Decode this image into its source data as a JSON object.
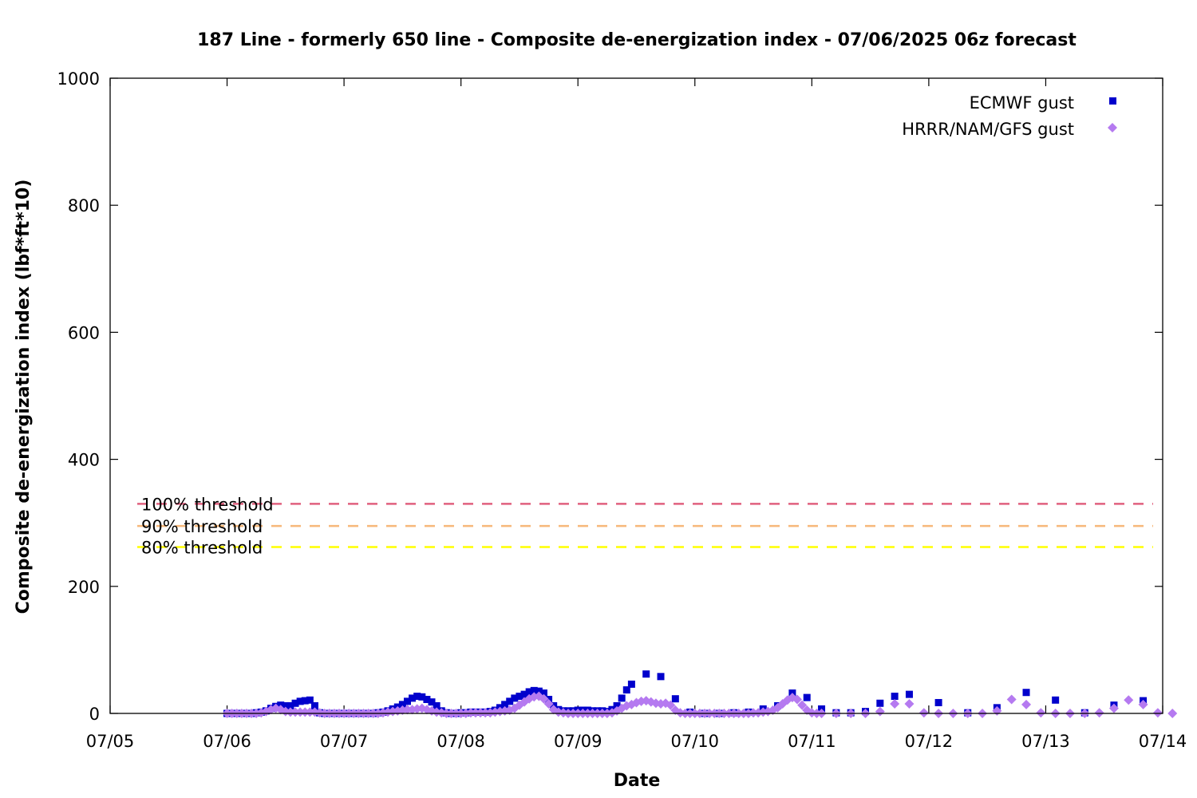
{
  "chart_data": {
    "type": "scatter",
    "title": "187 Line - formerly 650 line - Composite de-energization index - 07/06/2025 06z forecast",
    "xlabel": "Date",
    "ylabel": "Composite de-energization index (lbf*ft*10)",
    "ylim": [
      0,
      1000
    ],
    "xlim": [
      "2025-07-05 00:00",
      "2025-07-14 00:00"
    ],
    "x_tick_labels": [
      "07/05",
      "07/06",
      "07/07",
      "07/08",
      "07/09",
      "07/10",
      "07/11",
      "07/12",
      "07/13",
      "07/14"
    ],
    "y_tick_labels": [
      "0",
      "200",
      "400",
      "600",
      "800",
      "1000"
    ],
    "legend_position": "top-right",
    "thresholds": [
      {
        "label": "100% threshold",
        "value": 330,
        "color": "#e0607e"
      },
      {
        "label": "90% threshold",
        "value": 295,
        "color": "#f7b87a"
      },
      {
        "label": "80% threshold",
        "value": 262,
        "color": "#ffff00"
      }
    ],
    "series": [
      {
        "name": "ECMWF gust",
        "color": "#0000cc",
        "marker": "square",
        "points": [
          [
            "2025-07-06 00:00",
            0
          ],
          [
            "2025-07-06 01:00",
            0
          ],
          [
            "2025-07-06 02:00",
            0
          ],
          [
            "2025-07-06 03:00",
            0
          ],
          [
            "2025-07-06 04:00",
            0
          ],
          [
            "2025-07-06 05:00",
            0
          ],
          [
            "2025-07-06 06:00",
            1
          ],
          [
            "2025-07-06 07:00",
            2
          ],
          [
            "2025-07-06 08:00",
            4
          ],
          [
            "2025-07-06 09:00",
            8
          ],
          [
            "2025-07-06 10:00",
            11
          ],
          [
            "2025-07-06 11:00",
            13
          ],
          [
            "2025-07-06 12:00",
            12
          ],
          [
            "2025-07-06 13:00",
            12
          ],
          [
            "2025-07-06 14:00",
            16
          ],
          [
            "2025-07-06 15:00",
            19
          ],
          [
            "2025-07-06 16:00",
            20
          ],
          [
            "2025-07-06 17:00",
            21
          ],
          [
            "2025-07-06 18:00",
            12
          ],
          [
            "2025-07-06 19:00",
            1
          ],
          [
            "2025-07-06 20:00",
            0
          ],
          [
            "2025-07-06 21:00",
            0
          ],
          [
            "2025-07-06 22:00",
            0
          ],
          [
            "2025-07-06 23:00",
            0
          ],
          [
            "2025-07-07 00:00",
            0
          ],
          [
            "2025-07-07 01:00",
            0
          ],
          [
            "2025-07-07 02:00",
            0
          ],
          [
            "2025-07-07 03:00",
            0
          ],
          [
            "2025-07-07 04:00",
            0
          ],
          [
            "2025-07-07 05:00",
            0
          ],
          [
            "2025-07-07 06:00",
            0
          ],
          [
            "2025-07-07 07:00",
            1
          ],
          [
            "2025-07-07 08:00",
            2
          ],
          [
            "2025-07-07 09:00",
            4
          ],
          [
            "2025-07-07 10:00",
            7
          ],
          [
            "2025-07-07 11:00",
            10
          ],
          [
            "2025-07-07 12:00",
            14
          ],
          [
            "2025-07-07 13:00",
            19
          ],
          [
            "2025-07-07 14:00",
            24
          ],
          [
            "2025-07-07 15:00",
            27
          ],
          [
            "2025-07-07 16:00",
            26
          ],
          [
            "2025-07-07 17:00",
            22
          ],
          [
            "2025-07-07 18:00",
            18
          ],
          [
            "2025-07-07 19:00",
            12
          ],
          [
            "2025-07-07 20:00",
            4
          ],
          [
            "2025-07-07 21:00",
            1
          ],
          [
            "2025-07-07 22:00",
            0
          ],
          [
            "2025-07-07 23:00",
            0
          ],
          [
            "2025-07-08 00:00",
            1
          ],
          [
            "2025-07-08 01:00",
            1
          ],
          [
            "2025-07-08 02:00",
            2
          ],
          [
            "2025-07-08 03:00",
            2
          ],
          [
            "2025-07-08 04:00",
            2
          ],
          [
            "2025-07-08 05:00",
            2
          ],
          [
            "2025-07-08 06:00",
            3
          ],
          [
            "2025-07-08 07:00",
            5
          ],
          [
            "2025-07-08 08:00",
            9
          ],
          [
            "2025-07-08 09:00",
            14
          ],
          [
            "2025-07-08 10:00",
            19
          ],
          [
            "2025-07-08 11:00",
            24
          ],
          [
            "2025-07-08 12:00",
            27
          ],
          [
            "2025-07-08 13:00",
            30
          ],
          [
            "2025-07-08 14:00",
            34
          ],
          [
            "2025-07-08 15:00",
            36
          ],
          [
            "2025-07-08 16:00",
            35
          ],
          [
            "2025-07-08 17:00",
            32
          ],
          [
            "2025-07-08 18:00",
            22
          ],
          [
            "2025-07-08 19:00",
            12
          ],
          [
            "2025-07-08 20:00",
            6
          ],
          [
            "2025-07-08 21:00",
            4
          ],
          [
            "2025-07-08 22:00",
            4
          ],
          [
            "2025-07-08 23:00",
            4
          ],
          [
            "2025-07-09 00:00",
            5
          ],
          [
            "2025-07-09 01:00",
            5
          ],
          [
            "2025-07-09 02:00",
            5
          ],
          [
            "2025-07-09 03:00",
            4
          ],
          [
            "2025-07-09 04:00",
            4
          ],
          [
            "2025-07-09 05:00",
            4
          ],
          [
            "2025-07-09 06:00",
            3
          ],
          [
            "2025-07-09 07:00",
            6
          ],
          [
            "2025-07-09 08:00",
            12
          ],
          [
            "2025-07-09 09:00",
            24
          ],
          [
            "2025-07-09 10:00",
            37
          ],
          [
            "2025-07-09 11:00",
            46
          ],
          [
            "2025-07-09 14:00",
            62
          ],
          [
            "2025-07-09 17:00",
            58
          ],
          [
            "2025-07-09 20:00",
            23
          ],
          [
            "2025-07-09 23:00",
            2
          ],
          [
            "2025-07-10 02:00",
            0
          ],
          [
            "2025-07-10 05:00",
            0
          ],
          [
            "2025-07-10 08:00",
            1
          ],
          [
            "2025-07-10 11:00",
            2
          ],
          [
            "2025-07-10 14:00",
            7
          ],
          [
            "2025-07-10 17:00",
            12
          ],
          [
            "2025-07-10 20:00",
            32
          ],
          [
            "2025-07-10 23:00",
            25
          ],
          [
            "2025-07-11 02:00",
            7
          ],
          [
            "2025-07-11 05:00",
            1
          ],
          [
            "2025-07-11 08:00",
            1
          ],
          [
            "2025-07-11 11:00",
            3
          ],
          [
            "2025-07-11 14:00",
            16
          ],
          [
            "2025-07-11 17:00",
            27
          ],
          [
            "2025-07-11 20:00",
            30
          ],
          [
            "2025-07-12 02:00",
            17
          ],
          [
            "2025-07-12 08:00",
            1
          ],
          [
            "2025-07-12 14:00",
            9
          ],
          [
            "2025-07-12 20:00",
            33
          ],
          [
            "2025-07-13 02:00",
            21
          ],
          [
            "2025-07-13 08:00",
            1
          ],
          [
            "2025-07-13 14:00",
            13
          ],
          [
            "2025-07-13 20:00",
            20
          ]
        ]
      },
      {
        "name": "HRRR/NAM/GFS gust",
        "color": "#b57af0",
        "marker": "diamond",
        "points": [
          [
            "2025-07-06 00:00",
            0
          ],
          [
            "2025-07-06 01:00",
            0
          ],
          [
            "2025-07-06 02:00",
            0
          ],
          [
            "2025-07-06 03:00",
            0
          ],
          [
            "2025-07-06 04:00",
            0
          ],
          [
            "2025-07-06 05:00",
            0
          ],
          [
            "2025-07-06 06:00",
            0
          ],
          [
            "2025-07-06 07:00",
            1
          ],
          [
            "2025-07-06 08:00",
            3
          ],
          [
            "2025-07-06 09:00",
            6
          ],
          [
            "2025-07-06 10:00",
            8
          ],
          [
            "2025-07-06 11:00",
            6
          ],
          [
            "2025-07-06 12:00",
            3
          ],
          [
            "2025-07-06 13:00",
            2
          ],
          [
            "2025-07-06 14:00",
            2
          ],
          [
            "2025-07-06 15:00",
            2
          ],
          [
            "2025-07-06 16:00",
            2
          ],
          [
            "2025-07-06 17:00",
            2
          ],
          [
            "2025-07-06 18:00",
            2
          ],
          [
            "2025-07-06 19:00",
            1
          ],
          [
            "2025-07-06 20:00",
            0
          ],
          [
            "2025-07-06 21:00",
            0
          ],
          [
            "2025-07-06 22:00",
            0
          ],
          [
            "2025-07-06 23:00",
            0
          ],
          [
            "2025-07-07 00:00",
            0
          ],
          [
            "2025-07-07 01:00",
            0
          ],
          [
            "2025-07-07 02:00",
            0
          ],
          [
            "2025-07-07 03:00",
            0
          ],
          [
            "2025-07-07 04:00",
            0
          ],
          [
            "2025-07-07 05:00",
            0
          ],
          [
            "2025-07-07 06:00",
            0
          ],
          [
            "2025-07-07 07:00",
            0
          ],
          [
            "2025-07-07 08:00",
            1
          ],
          [
            "2025-07-07 09:00",
            2
          ],
          [
            "2025-07-07 10:00",
            3
          ],
          [
            "2025-07-07 11:00",
            4
          ],
          [
            "2025-07-07 12:00",
            5
          ],
          [
            "2025-07-07 13:00",
            6
          ],
          [
            "2025-07-07 14:00",
            6
          ],
          [
            "2025-07-07 15:00",
            7
          ],
          [
            "2025-07-07 16:00",
            8
          ],
          [
            "2025-07-07 17:00",
            6
          ],
          [
            "2025-07-07 18:00",
            4
          ],
          [
            "2025-07-07 19:00",
            2
          ],
          [
            "2025-07-07 20:00",
            1
          ],
          [
            "2025-07-07 21:00",
            0
          ],
          [
            "2025-07-07 22:00",
            0
          ],
          [
            "2025-07-07 23:00",
            0
          ],
          [
            "2025-07-08 00:00",
            0
          ],
          [
            "2025-07-08 01:00",
            0
          ],
          [
            "2025-07-08 02:00",
            1
          ],
          [
            "2025-07-08 03:00",
            1
          ],
          [
            "2025-07-08 04:00",
            1
          ],
          [
            "2025-07-08 05:00",
            1
          ],
          [
            "2025-07-08 06:00",
            1
          ],
          [
            "2025-07-08 07:00",
            2
          ],
          [
            "2025-07-08 08:00",
            3
          ],
          [
            "2025-07-08 09:00",
            4
          ],
          [
            "2025-07-08 10:00",
            5
          ],
          [
            "2025-07-08 11:00",
            8
          ],
          [
            "2025-07-08 12:00",
            13
          ],
          [
            "2025-07-08 13:00",
            18
          ],
          [
            "2025-07-08 14:00",
            23
          ],
          [
            "2025-07-08 15:00",
            26
          ],
          [
            "2025-07-08 16:00",
            27
          ],
          [
            "2025-07-08 17:00",
            23
          ],
          [
            "2025-07-08 18:00",
            15
          ],
          [
            "2025-07-08 19:00",
            6
          ],
          [
            "2025-07-08 20:00",
            2
          ],
          [
            "2025-07-08 21:00",
            1
          ],
          [
            "2025-07-08 22:00",
            0
          ],
          [
            "2025-07-08 23:00",
            0
          ],
          [
            "2025-07-09 00:00",
            0
          ],
          [
            "2025-07-09 01:00",
            0
          ],
          [
            "2025-07-09 02:00",
            0
          ],
          [
            "2025-07-09 03:00",
            0
          ],
          [
            "2025-07-09 04:00",
            0
          ],
          [
            "2025-07-09 05:00",
            0
          ],
          [
            "2025-07-09 06:00",
            0
          ],
          [
            "2025-07-09 07:00",
            1
          ],
          [
            "2025-07-09 08:00",
            4
          ],
          [
            "2025-07-09 09:00",
            8
          ],
          [
            "2025-07-09 10:00",
            12
          ],
          [
            "2025-07-09 11:00",
            14
          ],
          [
            "2025-07-09 12:00",
            17
          ],
          [
            "2025-07-09 13:00",
            19
          ],
          [
            "2025-07-09 14:00",
            20
          ],
          [
            "2025-07-09 15:00",
            18
          ],
          [
            "2025-07-09 16:00",
            16
          ],
          [
            "2025-07-09 17:00",
            15
          ],
          [
            "2025-07-09 18:00",
            16
          ],
          [
            "2025-07-09 19:00",
            13
          ],
          [
            "2025-07-09 20:00",
            5
          ],
          [
            "2025-07-09 21:00",
            1
          ],
          [
            "2025-07-09 22:00",
            0
          ],
          [
            "2025-07-09 23:00",
            0
          ],
          [
            "2025-07-10 00:00",
            0
          ],
          [
            "2025-07-10 01:00",
            0
          ],
          [
            "2025-07-10 02:00",
            0
          ],
          [
            "2025-07-10 03:00",
            0
          ],
          [
            "2025-07-10 04:00",
            0
          ],
          [
            "2025-07-10 05:00",
            0
          ],
          [
            "2025-07-10 06:00",
            0
          ],
          [
            "2025-07-10 07:00",
            0
          ],
          [
            "2025-07-10 08:00",
            0
          ],
          [
            "2025-07-10 09:00",
            0
          ],
          [
            "2025-07-10 10:00",
            0
          ],
          [
            "2025-07-10 11:00",
            0
          ],
          [
            "2025-07-10 12:00",
            1
          ],
          [
            "2025-07-10 13:00",
            1
          ],
          [
            "2025-07-10 14:00",
            2
          ],
          [
            "2025-07-10 15:00",
            3
          ],
          [
            "2025-07-10 16:00",
            5
          ],
          [
            "2025-07-10 17:00",
            9
          ],
          [
            "2025-07-10 18:00",
            15
          ],
          [
            "2025-07-10 19:00",
            21
          ],
          [
            "2025-07-10 20:00",
            25
          ],
          [
            "2025-07-10 21:00",
            22
          ],
          [
            "2025-07-10 22:00",
            13
          ],
          [
            "2025-07-10 23:00",
            5
          ],
          [
            "2025-07-11 00:00",
            1
          ],
          [
            "2025-07-11 01:00",
            0
          ],
          [
            "2025-07-11 02:00",
            0
          ],
          [
            "2025-07-11 05:00",
            0
          ],
          [
            "2025-07-11 08:00",
            0
          ],
          [
            "2025-07-11 11:00",
            0
          ],
          [
            "2025-07-11 14:00",
            3
          ],
          [
            "2025-07-11 17:00",
            15
          ],
          [
            "2025-07-11 20:00",
            15
          ],
          [
            "2025-07-11 23:00",
            1
          ],
          [
            "2025-07-12 02:00",
            0
          ],
          [
            "2025-07-12 05:00",
            0
          ],
          [
            "2025-07-12 08:00",
            0
          ],
          [
            "2025-07-12 11:00",
            0
          ],
          [
            "2025-07-12 14:00",
            4
          ],
          [
            "2025-07-12 17:00",
            22
          ],
          [
            "2025-07-12 20:00",
            14
          ],
          [
            "2025-07-12 23:00",
            1
          ],
          [
            "2025-07-13 02:00",
            0
          ],
          [
            "2025-07-13 05:00",
            0
          ],
          [
            "2025-07-13 08:00",
            0
          ],
          [
            "2025-07-13 11:00",
            1
          ],
          [
            "2025-07-13 14:00",
            8
          ],
          [
            "2025-07-13 17:00",
            21
          ],
          [
            "2025-07-13 20:00",
            14
          ],
          [
            "2025-07-13 23:00",
            1
          ],
          [
            "2025-07-14 02:00",
            0
          ]
        ]
      }
    ]
  }
}
